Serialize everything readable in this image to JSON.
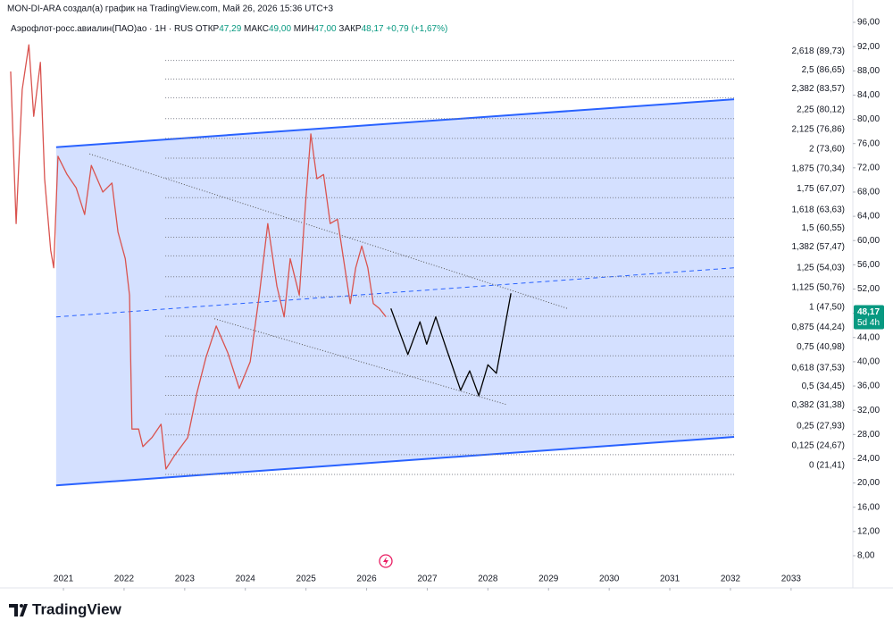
{
  "header": {
    "author_line": "MON-DI-ARA создал(а) график на TradingView.com, Май 26, 2026 15:36 UTC+3",
    "symbol": "Аэрофлот-росс.авиалин(ПАО)ао · 1Н · RUS",
    "open_label": "ОТКР",
    "open": "47,29",
    "high_label": "МАКС",
    "high": "49,00",
    "low_label": "МИН",
    "low": "47,00",
    "close_label": "ЗАКР",
    "close": "48,17",
    "change": "+0,79 (+1,67%)"
  },
  "chart_data": {
    "type": "line",
    "xlim": [
      2019.954,
      2034.018
    ],
    "ylim": [
      2.69,
      99.69
    ],
    "grid": false,
    "xticks": [
      2021,
      2022,
      2023,
      2024,
      2025,
      2026,
      2027,
      2028,
      2029,
      2030,
      2031,
      2032,
      2033
    ],
    "yticks": [
      {
        "value": 8,
        "label": "8,00"
      },
      {
        "value": 12,
        "label": "12,00"
      },
      {
        "value": 16,
        "label": "16,00"
      },
      {
        "value": 20,
        "label": "20,00"
      },
      {
        "value": 24,
        "label": "24,00"
      },
      {
        "value": 28,
        "label": "28,00"
      },
      {
        "value": 32,
        "label": "32,00"
      },
      {
        "value": 36,
        "label": "36,00"
      },
      {
        "value": 40,
        "label": "40,00"
      },
      {
        "value": 44,
        "label": "44,00"
      },
      {
        "value": 48,
        "label": "48,00"
      },
      {
        "value": 52,
        "label": "52,00"
      },
      {
        "value": 56,
        "label": "56,00"
      },
      {
        "value": 60,
        "label": "60,00"
      },
      {
        "value": 64,
        "label": "64,00"
      },
      {
        "value": 68,
        "label": "68,00"
      },
      {
        "value": 72,
        "label": "72,00"
      },
      {
        "value": 76,
        "label": "76,00"
      },
      {
        "value": 80,
        "label": "80,00"
      },
      {
        "value": 84,
        "label": "84,00"
      },
      {
        "value": 88,
        "label": "88,00"
      },
      {
        "value": 92,
        "label": "92,00"
      },
      {
        "value": 96,
        "label": "96,00"
      }
    ],
    "channel": {
      "color": "#2962ff",
      "fill": "rgba(41,98,255,0.2)",
      "x": [
        2020.88,
        2032.06
      ],
      "upper": [
        75.4,
        83.3
      ],
      "lower": [
        19.6,
        27.6
      ],
      "mid": [
        47.4,
        55.5
      ]
    },
    "trendlines": [
      {
        "color": "#555",
        "x": [
          2021.43,
          2029.31
        ],
        "y": [
          74.3,
          48.8
        ]
      },
      {
        "color": "#555",
        "x": [
          2023.49,
          2028.32
        ],
        "y": [
          47.1,
          32.9
        ]
      }
    ],
    "fib_x": [
      2022.68,
      2032.06
    ],
    "fib_levels": [
      {
        "value": 89.73,
        "label": "2,618 (89,73)"
      },
      {
        "value": 86.65,
        "label": "2,5 (86,65)"
      },
      {
        "value": 83.57,
        "label": "2,382 (83,57)"
      },
      {
        "value": 80.12,
        "label": "2,25 (80,12)"
      },
      {
        "value": 76.86,
        "label": "2,125 (76,86)"
      },
      {
        "value": 73.6,
        "label": "2 (73,60)"
      },
      {
        "value": 70.34,
        "label": "1,875 (70,34)"
      },
      {
        "value": 67.07,
        "label": "1,75 (67,07)"
      },
      {
        "value": 63.63,
        "label": "1,618 (63,63)"
      },
      {
        "value": 60.55,
        "label": "1,5 (60,55)"
      },
      {
        "value": 57.47,
        "label": "1,382 (57,47)"
      },
      {
        "value": 54.03,
        "label": "1,25 (54,03)"
      },
      {
        "value": 50.76,
        "label": "1,125 (50,76)"
      },
      {
        "value": 47.5,
        "label": "1 (47,50)"
      },
      {
        "value": 44.24,
        "label": "0,875 (44,24)"
      },
      {
        "value": 40.98,
        "label": "0,75 (40,98)"
      },
      {
        "value": 37.53,
        "label": "0,618 (37,53)"
      },
      {
        "value": 34.45,
        "label": "0,5 (34,45)"
      },
      {
        "value": 31.38,
        "label": "0,382 (31,38)"
      },
      {
        "value": 27.93,
        "label": "0,25 (27,93)"
      },
      {
        "value": 24.67,
        "label": "0,125 (24,67)"
      },
      {
        "value": 21.41,
        "label": "0 (21,41)"
      }
    ],
    "series": [
      {
        "name": "Price",
        "color": "#d9534f",
        "x": [
          2020.13,
          2020.22,
          2020.32,
          2020.43,
          2020.51,
          2020.62,
          2020.69,
          2020.79,
          2020.84,
          2020.91,
          2021.06,
          2021.21,
          2021.35,
          2021.46,
          2021.65,
          2021.8,
          2021.9,
          2022.02,
          2022.09,
          2022.13,
          2022.24,
          2022.31,
          2022.46,
          2022.61,
          2022.69,
          2022.83,
          2023.05,
          2023.2,
          2023.35,
          2023.52,
          2023.71,
          2023.9,
          2024.08,
          2024.23,
          2024.37,
          2024.52,
          2024.64,
          2024.74,
          2024.89,
          2024.99,
          2025.08,
          2025.18,
          2025.29,
          2025.4,
          2025.52,
          2025.62,
          2025.73,
          2025.82,
          2025.92,
          2026.02,
          2026.11,
          2026.21,
          2026.32
        ],
        "values": [
          87.9,
          62.8,
          84.9,
          92.3,
          80.5,
          89.4,
          70.2,
          58.4,
          55.5,
          73.9,
          70.9,
          68.7,
          64.3,
          72.4,
          68.0,
          69.5,
          61.4,
          57.0,
          51.0,
          28.9,
          28.9,
          26.0,
          27.5,
          29.7,
          22.3,
          24.5,
          27.5,
          34.8,
          40.7,
          45.9,
          41.5,
          35.6,
          40.0,
          51.0,
          62.8,
          52.5,
          47.4,
          57.0,
          51.0,
          65.8,
          77.6,
          70.2,
          70.9,
          62.8,
          63.5,
          56.9,
          49.6,
          55.5,
          59.1,
          55.5,
          49.6,
          48.8,
          47.4
        ]
      },
      {
        "name": "Forecast",
        "color": "#000000",
        "x": [
          2026.4,
          2026.68,
          2026.88,
          2026.99,
          2027.14,
          2027.29,
          2027.55,
          2027.7,
          2027.85,
          2028.0,
          2028.14,
          2028.38
        ],
        "values": [
          48.8,
          41.2,
          46.6,
          42.9,
          47.4,
          42.9,
          35.3,
          38.5,
          34.4,
          39.5,
          38.1,
          51.3
        ]
      }
    ],
    "last_price": {
      "value": 48.17,
      "label": "48,17",
      "countdown": "5d 4h",
      "color": "#089981"
    }
  },
  "footer": {
    "brand": "TradingView"
  }
}
